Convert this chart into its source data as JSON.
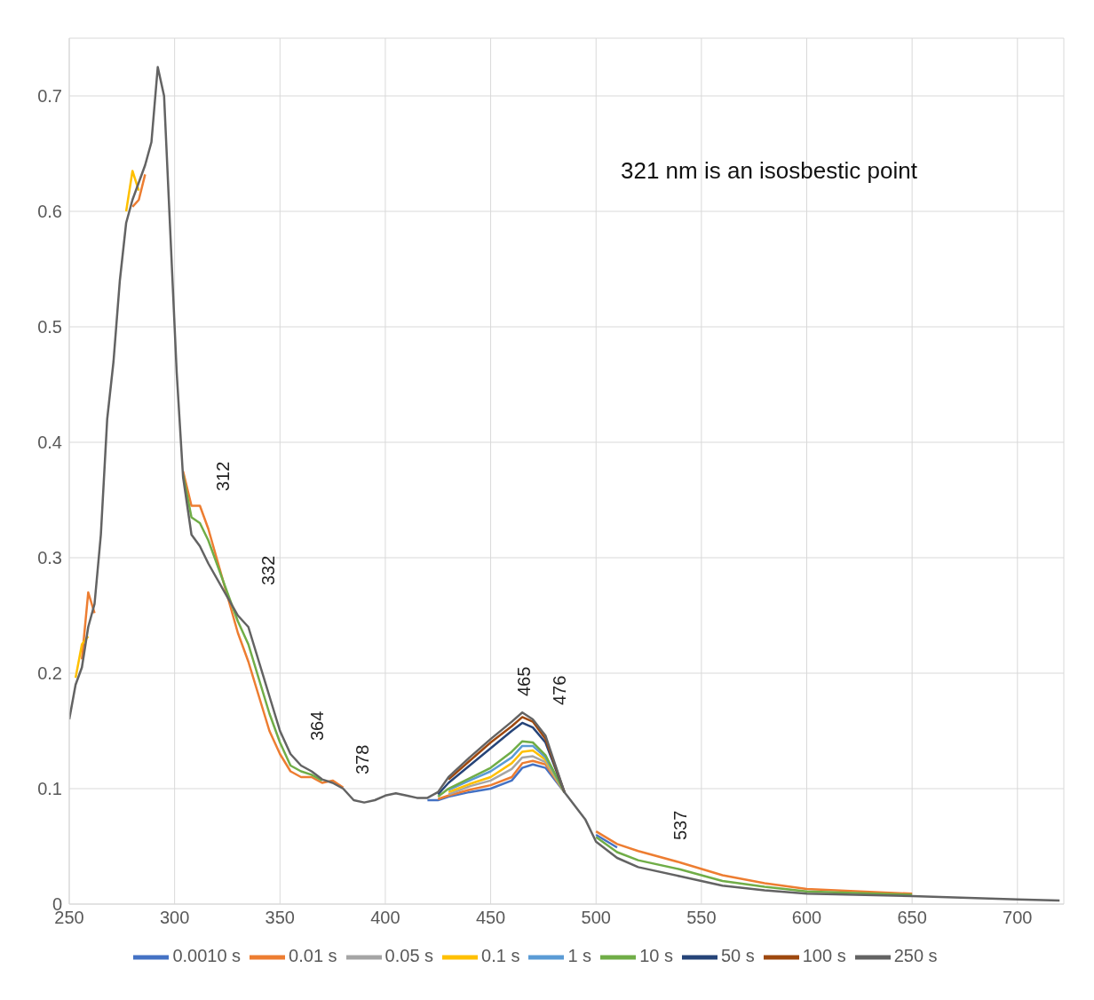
{
  "chart_data": {
    "type": "line",
    "x": [
      250,
      253,
      256,
      259,
      262,
      265,
      268,
      271,
      274,
      277,
      280,
      283,
      286,
      289,
      292,
      295,
      298,
      301,
      304,
      308,
      312,
      316,
      330,
      335,
      340,
      345,
      350,
      355,
      360,
      365,
      370,
      375,
      380,
      385,
      390,
      395,
      400,
      405,
      410,
      415,
      420,
      425,
      430,
      440,
      450,
      460,
      465,
      470,
      476,
      485,
      490,
      495,
      500,
      510,
      520,
      540,
      560,
      580,
      600,
      650,
      700,
      720
    ],
    "series": [
      {
        "name": "0.0010 s",
        "color": "#4472c4",
        "values": [
          null,
          null,
          null,
          null,
          null,
          null,
          null,
          null,
          null,
          null,
          null,
          null,
          null,
          null,
          null,
          null,
          null,
          null,
          null,
          null,
          null,
          null,
          null,
          null,
          null,
          null,
          null,
          null,
          null,
          null,
          null,
          null,
          null,
          null,
          null,
          null,
          null,
          null,
          null,
          null,
          0.09,
          0.09,
          0.093,
          0.097,
          0.1,
          0.107,
          0.118,
          0.121,
          0.118,
          0.097,
          null,
          null,
          0.06,
          0.049,
          null,
          null,
          null,
          null,
          null,
          null,
          null,
          null
        ]
      },
      {
        "name": "0.01 s",
        "color": "#ed7d31",
        "values": [
          null,
          null,
          0.212,
          0.27,
          0.252,
          null,
          null,
          null,
          null,
          null,
          0.604,
          0.61,
          0.632,
          null,
          null,
          null,
          null,
          null,
          0.375,
          0.345,
          0.345,
          0.325,
          0.235,
          0.21,
          0.18,
          0.15,
          0.13,
          0.115,
          0.11,
          0.11,
          0.105,
          0.107,
          0.101,
          null,
          null,
          null,
          null,
          null,
          null,
          null,
          null,
          0.091,
          0.094,
          0.099,
          0.103,
          0.11,
          0.122,
          0.124,
          0.121,
          0.097,
          null,
          null,
          0.063,
          0.052,
          0.046,
          0.036,
          0.025,
          0.018,
          0.013,
          0.009,
          null,
          null
        ]
      },
      {
        "name": "0.05 s",
        "color": "#a5a5a5",
        "values": [
          null,
          null,
          null,
          null,
          null,
          null,
          null,
          null,
          null,
          null,
          null,
          null,
          null,
          null,
          null,
          null,
          null,
          null,
          null,
          null,
          null,
          null,
          null,
          null,
          null,
          null,
          null,
          null,
          null,
          null,
          null,
          null,
          null,
          null,
          null,
          null,
          null,
          null,
          null,
          null,
          null,
          null,
          0.095,
          0.102,
          0.107,
          0.117,
          0.127,
          0.128,
          0.123,
          0.097,
          null,
          null,
          null,
          null,
          null,
          null,
          null,
          null,
          null,
          null,
          null,
          null
        ]
      },
      {
        "name": "0.1 s",
        "color": "#ffc000",
        "values": [
          null,
          0.196,
          0.225,
          0.232,
          null,
          null,
          null,
          null,
          null,
          0.6,
          0.635,
          0.618,
          null,
          null,
          null,
          null,
          null,
          null,
          null,
          null,
          null,
          null,
          null,
          null,
          null,
          null,
          null,
          null,
          null,
          null,
          null,
          null,
          null,
          null,
          null,
          null,
          null,
          null,
          null,
          null,
          null,
          null,
          0.097,
          0.104,
          0.11,
          0.122,
          0.132,
          0.133,
          0.125,
          0.097,
          null,
          null,
          null,
          null,
          null,
          null,
          null,
          null,
          null,
          null,
          null,
          null
        ]
      },
      {
        "name": "1 s",
        "color": "#5b9bd5",
        "values": [
          null,
          null,
          null,
          null,
          null,
          null,
          null,
          null,
          null,
          null,
          null,
          null,
          null,
          null,
          null,
          null,
          null,
          null,
          null,
          null,
          null,
          null,
          null,
          null,
          null,
          null,
          null,
          null,
          null,
          null,
          null,
          null,
          null,
          null,
          null,
          null,
          null,
          null,
          null,
          null,
          null,
          null,
          0.099,
          0.107,
          0.115,
          0.127,
          0.137,
          0.137,
          0.127,
          0.097,
          null,
          null,
          null,
          null,
          null,
          null,
          null,
          null,
          null,
          null,
          null,
          null
        ]
      },
      {
        "name": "10 s",
        "color": "#70ad47",
        "values": [
          null,
          null,
          null,
          null,
          null,
          null,
          null,
          null,
          null,
          null,
          null,
          null,
          null,
          null,
          null,
          null,
          null,
          null,
          0.372,
          0.335,
          0.33,
          0.315,
          0.245,
          0.225,
          0.195,
          0.165,
          0.14,
          0.12,
          0.115,
          0.112,
          0.107,
          null,
          null,
          null,
          null,
          null,
          null,
          null,
          null,
          null,
          null,
          0.093,
          0.1,
          0.109,
          0.118,
          0.132,
          0.141,
          0.14,
          0.129,
          0.097,
          null,
          null,
          0.058,
          0.045,
          0.038,
          0.03,
          0.02,
          0.015,
          0.011,
          0.008,
          null,
          null
        ]
      },
      {
        "name": "50 s",
        "color": "#264478",
        "values": [
          null,
          null,
          null,
          null,
          null,
          null,
          null,
          null,
          null,
          null,
          null,
          null,
          null,
          null,
          null,
          null,
          null,
          null,
          null,
          null,
          null,
          null,
          null,
          null,
          null,
          null,
          null,
          null,
          null,
          null,
          null,
          null,
          null,
          null,
          null,
          null,
          null,
          null,
          null,
          null,
          null,
          0.095,
          0.105,
          0.12,
          0.135,
          0.15,
          0.157,
          0.153,
          0.14,
          0.097,
          null,
          null,
          null,
          null,
          null,
          null,
          null,
          null,
          null,
          null,
          null,
          null
        ]
      },
      {
        "name": "100 s",
        "color": "#9e480e",
        "values": [
          null,
          null,
          null,
          null,
          null,
          null,
          null,
          null,
          null,
          null,
          null,
          null,
          null,
          null,
          null,
          null,
          null,
          null,
          null,
          null,
          null,
          null,
          null,
          null,
          null,
          null,
          null,
          null,
          null,
          null,
          null,
          null,
          null,
          null,
          null,
          null,
          null,
          null,
          null,
          null,
          null,
          null,
          0.108,
          0.124,
          0.14,
          0.154,
          0.162,
          0.158,
          0.143,
          0.097,
          null,
          null,
          null,
          null,
          null,
          null,
          null,
          null,
          null,
          null,
          null,
          null
        ]
      },
      {
        "name": "250 s",
        "color": "#636363",
        "values": [
          0.16,
          0.19,
          0.205,
          0.24,
          0.26,
          0.32,
          0.42,
          0.47,
          0.54,
          0.59,
          0.61,
          0.625,
          0.64,
          0.66,
          0.725,
          0.7,
          0.58,
          0.46,
          0.37,
          0.32,
          0.31,
          0.295,
          0.25,
          0.24,
          0.21,
          0.18,
          0.15,
          0.13,
          0.12,
          0.115,
          0.108,
          0.105,
          0.1,
          0.09,
          0.088,
          0.09,
          0.094,
          0.096,
          0.094,
          0.092,
          0.092,
          0.097,
          0.11,
          0.127,
          0.143,
          0.158,
          0.166,
          0.16,
          0.146,
          0.097,
          0.085,
          0.073,
          0.054,
          0.04,
          0.032,
          0.024,
          0.016,
          0.012,
          0.009,
          0.007,
          0.004,
          0.003
        ]
      }
    ],
    "xlim": [
      250,
      722
    ],
    "xticks": [
      250,
      300,
      350,
      400,
      450,
      500,
      550,
      600,
      650,
      700
    ],
    "ylim": [
      0,
      0.75
    ],
    "yticks": [
      0,
      0.1,
      0.2,
      0.3,
      0.4,
      0.5,
      0.6,
      0.7
    ],
    "grid": true,
    "legend": "bottom",
    "marker": "none",
    "line_style": "solid",
    "annotations": [
      "321 nm is an isosbestic point",
      "312",
      "332",
      "364",
      "378",
      "465",
      "476",
      "537"
    ]
  }
}
